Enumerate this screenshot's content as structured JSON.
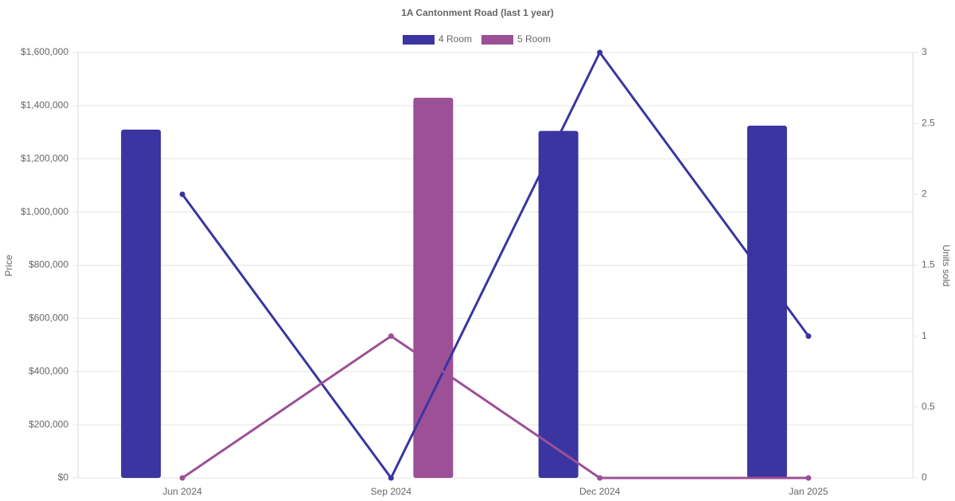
{
  "chart_data": {
    "type": "bar",
    "title": "1A Cantonment Road (last 1 year)",
    "y_label": "Price",
    "y2_label": "Units sold",
    "categories": [
      "Jun 2024",
      "Sep 2024",
      "Dec 2024",
      "Jan 2025"
    ],
    "series": [
      {
        "name": "4 Room",
        "color": "#3a35a0",
        "values": [
          1310000,
          null,
          1305000,
          1325000
        ],
        "units": [
          2,
          0,
          3,
          1
        ],
        "units_axis": "y2"
      },
      {
        "name": "5 Room",
        "color": "#9c5096",
        "values": [
          null,
          1430000,
          null,
          null
        ],
        "units": [
          0,
          1,
          0,
          0
        ],
        "units_axis": "y2"
      }
    ],
    "ylim": [
      0,
      1600000
    ],
    "yticks": [
      {
        "value": 0,
        "label": "$0"
      },
      {
        "value": 200000,
        "label": "$200,000"
      },
      {
        "value": 400000,
        "label": "$400,000"
      },
      {
        "value": 600000,
        "label": "$600,000"
      },
      {
        "value": 800000,
        "label": "$800,000"
      },
      {
        "value": 1000000,
        "label": "$1,000,000"
      },
      {
        "value": 1200000,
        "label": "$1,200,000"
      },
      {
        "value": 1400000,
        "label": "$1,400,000"
      },
      {
        "value": 1600000,
        "label": "$1,600,000"
      }
    ],
    "y2lim": [
      0,
      3
    ],
    "y2ticks": [
      0,
      0.5,
      1,
      1.5,
      2,
      2.5,
      3
    ],
    "grid": true
  }
}
